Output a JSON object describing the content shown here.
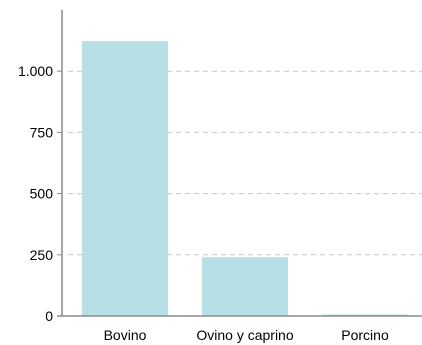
{
  "chart_data": {
    "type": "bar",
    "categories": [
      "Bovino",
      "Ovino y caprino",
      "Porcino"
    ],
    "values": [
      1123,
      240,
      3
    ],
    "ylim": [
      0,
      1250
    ],
    "yticks": [
      0,
      250,
      500,
      750,
      1000
    ],
    "ytick_labels": [
      "0",
      "250",
      "500",
      "750",
      "1.000"
    ],
    "grid": true,
    "bar_color": "#b7e0e6",
    "axis_color": "#8a8a8a",
    "grid_color": "#c8c8c8"
  }
}
